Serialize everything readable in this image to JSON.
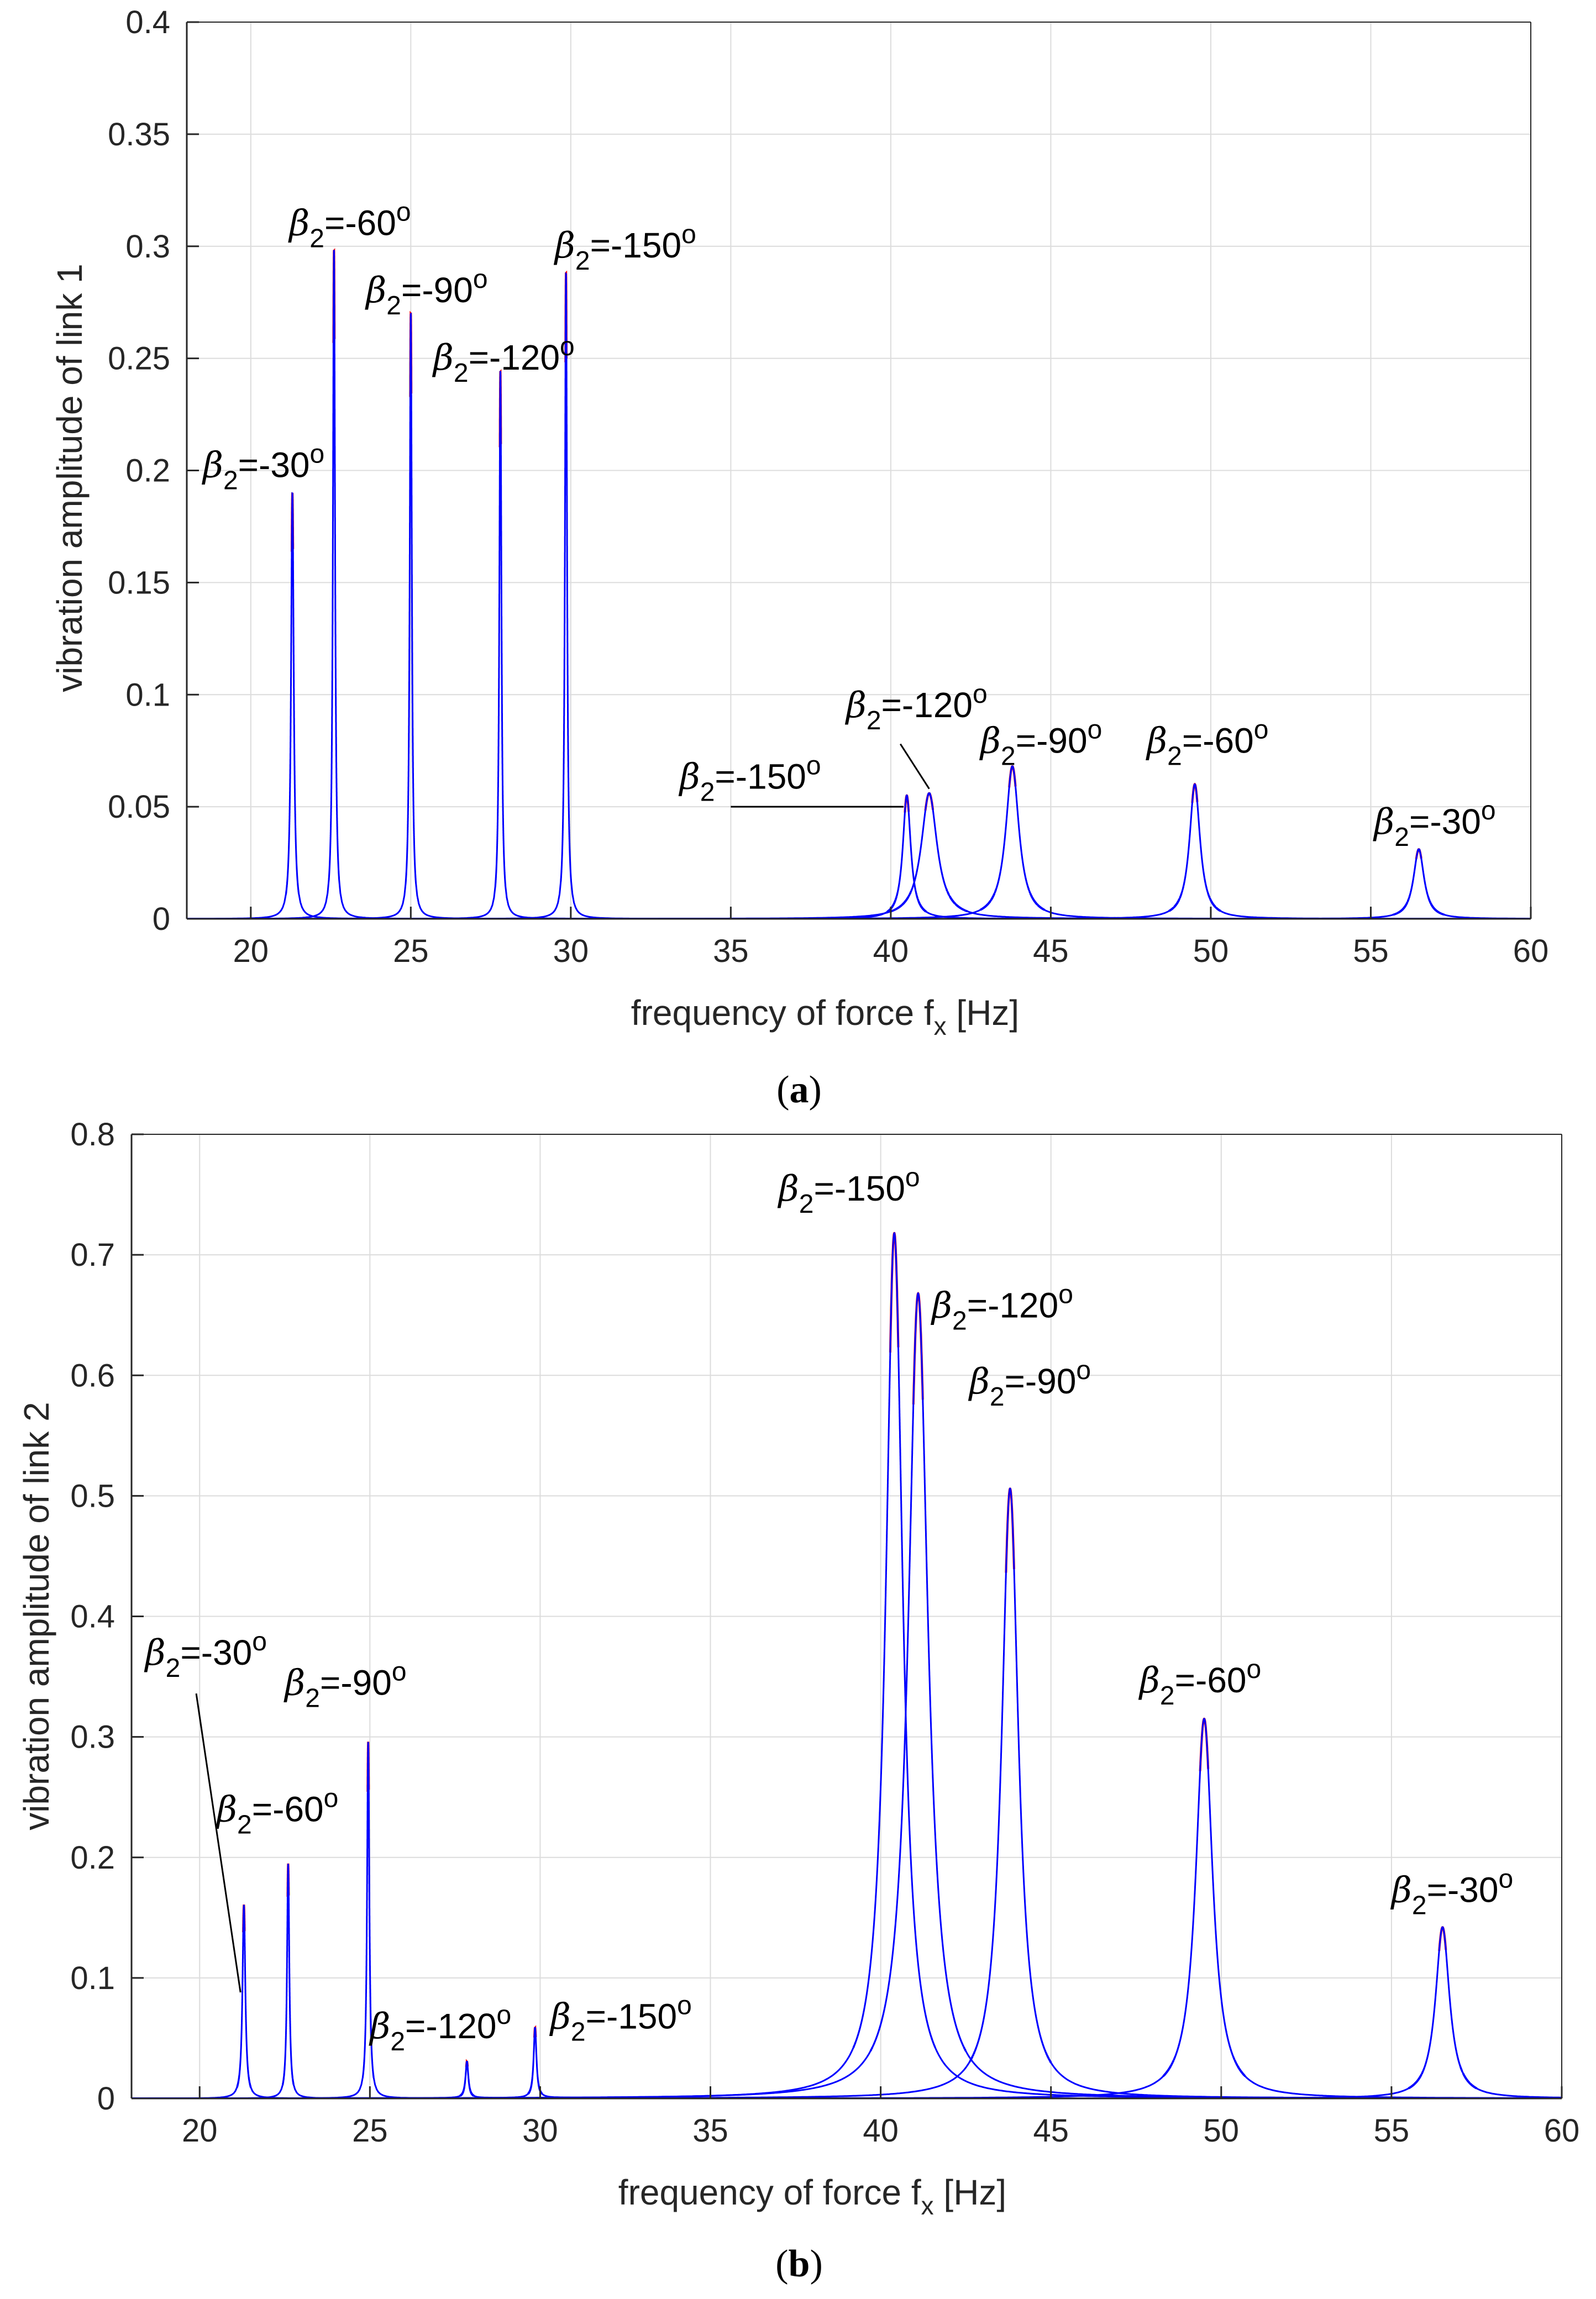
{
  "colors": {
    "primary": "#0000ff",
    "secondary": "#ff0000",
    "grid": "#dcdcdc",
    "axis": "#262626"
  },
  "chart_data": [
    {
      "type": "line",
      "panel_label": "(a)",
      "panel_letter": "a",
      "xlabel": "frequency of force f",
      "xlabel_sub": "x",
      "xlabel_unit": "[Hz]",
      "ylabel": "vibration amplitude of link 1",
      "xlim": [
        18,
        60
      ],
      "ylim": [
        0,
        0.4
      ],
      "grid": true,
      "x_ticks": [
        20,
        25,
        30,
        35,
        40,
        45,
        50,
        55,
        60
      ],
      "x_tick_labels": [
        "20",
        "25",
        "30",
        "35",
        "40",
        "45",
        "50",
        "55",
        "60"
      ],
      "y_ticks": [
        0,
        0.05,
        0.1,
        0.15,
        0.2,
        0.25,
        0.3,
        0.35,
        0.4
      ],
      "y_tick_labels": [
        "0",
        "0.05",
        "0.1",
        "0.15",
        "0.2",
        "0.25",
        "0.3",
        "0.35",
        "0.4"
      ],
      "series": [
        {
          "name": "β2=-30°",
          "beta2": -30,
          "peaks": [
            {
              "f": 21.3,
              "amp": 0.19,
              "w": 0.05
            },
            {
              "f": 56.5,
              "amp": 0.031,
              "w": 0.2
            }
          ]
        },
        {
          "name": "β2=-60°",
          "beta2": -60,
          "peaks": [
            {
              "f": 22.6,
              "amp": 0.298,
              "w": 0.04
            },
            {
              "f": 49.5,
              "amp": 0.06,
              "w": 0.2
            }
          ]
        },
        {
          "name": "β2=-90°",
          "beta2": -90,
          "peaks": [
            {
              "f": 25.0,
              "amp": 0.27,
              "w": 0.04
            },
            {
              "f": 43.8,
              "amp": 0.068,
              "w": 0.25
            }
          ]
        },
        {
          "name": "β2=-120°",
          "beta2": -120,
          "peaks": [
            {
              "f": 27.8,
              "amp": 0.244,
              "w": 0.04
            },
            {
              "f": 41.2,
              "amp": 0.056,
              "w": 0.3
            }
          ]
        },
        {
          "name": "β2=-150°",
          "beta2": -150,
          "peaks": [
            {
              "f": 29.85,
              "amp": 0.288,
              "w": 0.04
            },
            {
              "f": 40.5,
              "amp": 0.055,
              "w": 0.15
            }
          ]
        }
      ],
      "annotations": [
        {
          "pre": "β",
          "sub": "2",
          "mid": "=-60",
          "sup": "o",
          "at": [
            21.2,
            0.305
          ]
        },
        {
          "pre": "β",
          "sub": "2",
          "mid": "=-90",
          "sup": "o",
          "at": [
            23.6,
            0.275
          ]
        },
        {
          "pre": "β",
          "sub": "2",
          "mid": "=-150",
          "sup": "o",
          "at": [
            29.5,
            0.295
          ]
        },
        {
          "pre": "β",
          "sub": "2",
          "mid": "=-120",
          "sup": "o",
          "at": [
            25.7,
            0.245
          ]
        },
        {
          "pre": "β",
          "sub": "2",
          "mid": "=-30",
          "sup": "o",
          "at": [
            18.5,
            0.197
          ]
        },
        {
          "pre": "β",
          "sub": "2",
          "mid": "=-120",
          "sup": "o",
          "at": [
            38.6,
            0.09
          ]
        },
        {
          "pre": "β",
          "sub": "2",
          "mid": "=-90",
          "sup": "o",
          "at": [
            42.8,
            0.074
          ]
        },
        {
          "pre": "β",
          "sub": "2",
          "mid": "=-60",
          "sup": "o",
          "at": [
            48.0,
            0.074
          ]
        },
        {
          "pre": "β",
          "sub": "2",
          "mid": "=-150",
          "sup": "o",
          "at": [
            33.4,
            0.058
          ]
        },
        {
          "pre": "β",
          "sub": "2",
          "mid": "=-30",
          "sup": "o",
          "at": [
            55.1,
            0.038
          ]
        }
      ],
      "leaders": [
        {
          "from": [
            35.0,
            0.05
          ],
          "to": [
            40.4,
            0.05
          ]
        },
        {
          "from": [
            40.3,
            0.078
          ],
          "to": [
            41.2,
            0.058
          ]
        }
      ]
    },
    {
      "type": "line",
      "panel_label": "(b)",
      "panel_letter": "b",
      "xlabel": "frequency of force f",
      "xlabel_sub": "x",
      "xlabel_unit": "[Hz]",
      "ylabel": "vibration amplitude of link 2",
      "xlim": [
        18,
        60
      ],
      "ylim": [
        0,
        0.8
      ],
      "grid": true,
      "x_ticks": [
        20,
        25,
        30,
        35,
        40,
        45,
        50,
        55,
        60
      ],
      "x_tick_labels": [
        "20",
        "25",
        "30",
        "35",
        "40",
        "45",
        "50",
        "55",
        "60"
      ],
      "y_ticks": [
        0,
        0.1,
        0.2,
        0.3,
        0.4,
        0.5,
        0.6,
        0.7,
        0.8
      ],
      "y_tick_labels": [
        "0",
        "0.1",
        "0.2",
        "0.3",
        "0.4",
        "0.5",
        "0.6",
        "0.7",
        "0.8"
      ],
      "series": [
        {
          "name": "β2=-30°",
          "beta2": -30,
          "peaks": [
            {
              "f": 21.3,
              "amp": 0.16,
              "w": 0.05
            },
            {
              "f": 56.5,
              "amp": 0.142,
              "w": 0.25
            }
          ]
        },
        {
          "name": "β2=-60°",
          "beta2": -60,
          "peaks": [
            {
              "f": 22.6,
              "amp": 0.194,
              "w": 0.04
            },
            {
              "f": 49.5,
              "amp": 0.315,
              "w": 0.3
            }
          ]
        },
        {
          "name": "β2=-90°",
          "beta2": -90,
          "peaks": [
            {
              "f": 24.95,
              "amp": 0.295,
              "w": 0.04
            },
            {
              "f": 43.8,
              "amp": 0.506,
              "w": 0.3
            }
          ]
        },
        {
          "name": "β2=-120°",
          "beta2": -120,
          "peaks": [
            {
              "f": 27.85,
              "amp": 0.03,
              "w": 0.05
            },
            {
              "f": 41.1,
              "amp": 0.668,
              "w": 0.35
            }
          ]
        },
        {
          "name": "β2=-150°",
          "beta2": -150,
          "peaks": [
            {
              "f": 29.85,
              "amp": 0.058,
              "w": 0.05
            },
            {
              "f": 40.4,
              "amp": 0.718,
              "w": 0.3
            }
          ]
        }
      ],
      "annotations": [
        {
          "pre": "β",
          "sub": "2",
          "mid": "=-150",
          "sup": "o",
          "at": [
            37.0,
            0.745
          ]
        },
        {
          "pre": "β",
          "sub": "2",
          "mid": "=-120",
          "sup": "o",
          "at": [
            41.5,
            0.648
          ]
        },
        {
          "pre": "β",
          "sub": "2",
          "mid": "=-90",
          "sup": "o",
          "at": [
            42.6,
            0.585
          ]
        },
        {
          "pre": "β",
          "sub": "2",
          "mid": "=-30",
          "sup": "o",
          "at": [
            18.4,
            0.36
          ]
        },
        {
          "pre": "β",
          "sub": "2",
          "mid": "=-90",
          "sup": "o",
          "at": [
            22.5,
            0.335
          ]
        },
        {
          "pre": "β",
          "sub": "2",
          "mid": "=-60",
          "sup": "o",
          "at": [
            47.6,
            0.337
          ]
        },
        {
          "pre": "β",
          "sub": "2",
          "mid": "=-60",
          "sup": "o",
          "at": [
            20.5,
            0.23
          ]
        },
        {
          "pre": "β",
          "sub": "2",
          "mid": "=-30",
          "sup": "o",
          "at": [
            55.0,
            0.163
          ]
        },
        {
          "pre": "β",
          "sub": "2",
          "mid": "=-120",
          "sup": "o",
          "at": [
            25.0,
            0.05
          ]
        },
        {
          "pre": "β",
          "sub": "2",
          "mid": "=-150",
          "sup": "o",
          "at": [
            30.3,
            0.058
          ]
        }
      ],
      "leaders": [
        {
          "from": [
            19.9,
            0.336
          ],
          "to": [
            21.2,
            0.088
          ]
        }
      ]
    }
  ]
}
